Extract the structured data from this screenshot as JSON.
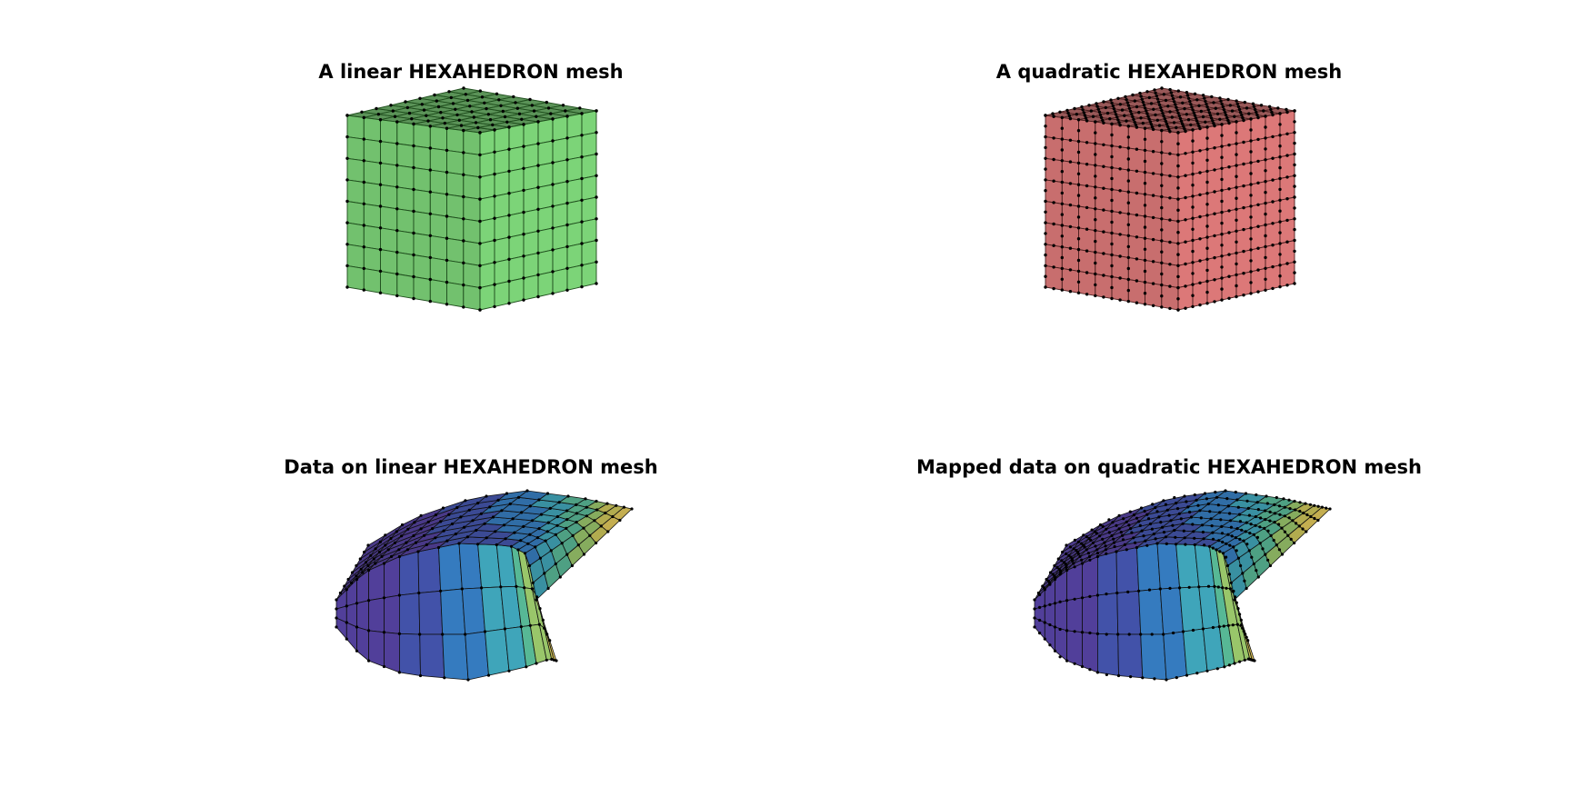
{
  "panels": [
    {
      "id": "linear",
      "title": "A linear HEXAHEDRON mesh",
      "type": "cube",
      "n": 8,
      "nodes_per_edge": 1,
      "fill_color": "#5fb85a",
      "edge_color": "#1f4d1d"
    },
    {
      "id": "quadratic",
      "title": "A quadratic HEXAHEDRON mesh",
      "type": "cube",
      "n": 8,
      "nodes_per_edge": 2,
      "fill_color": "#c05a5a",
      "edge_color": "#4a1f1f"
    },
    {
      "id": "data-linear",
      "title": "Data on linear HEXAHEDRON mesh",
      "type": "bent",
      "n": 8,
      "nodes_per_edge": 1,
      "colormap": [
        "#3e2a8f",
        "#2d3fa0",
        "#1f6db8",
        "#2a9bb2",
        "#45b08a",
        "#8ec05a",
        "#c8c046",
        "#e0c248"
      ]
    },
    {
      "id": "data-quadratic",
      "title": "Mapped data on quadratic HEXAHEDRON mesh",
      "type": "bent",
      "n": 8,
      "nodes_per_edge": 2,
      "colormap": [
        "#3e2a8f",
        "#2d3fa0",
        "#1f6db8",
        "#2a9bb2",
        "#45b08a",
        "#8ec05a",
        "#c8c046",
        "#e0c248"
      ]
    }
  ]
}
